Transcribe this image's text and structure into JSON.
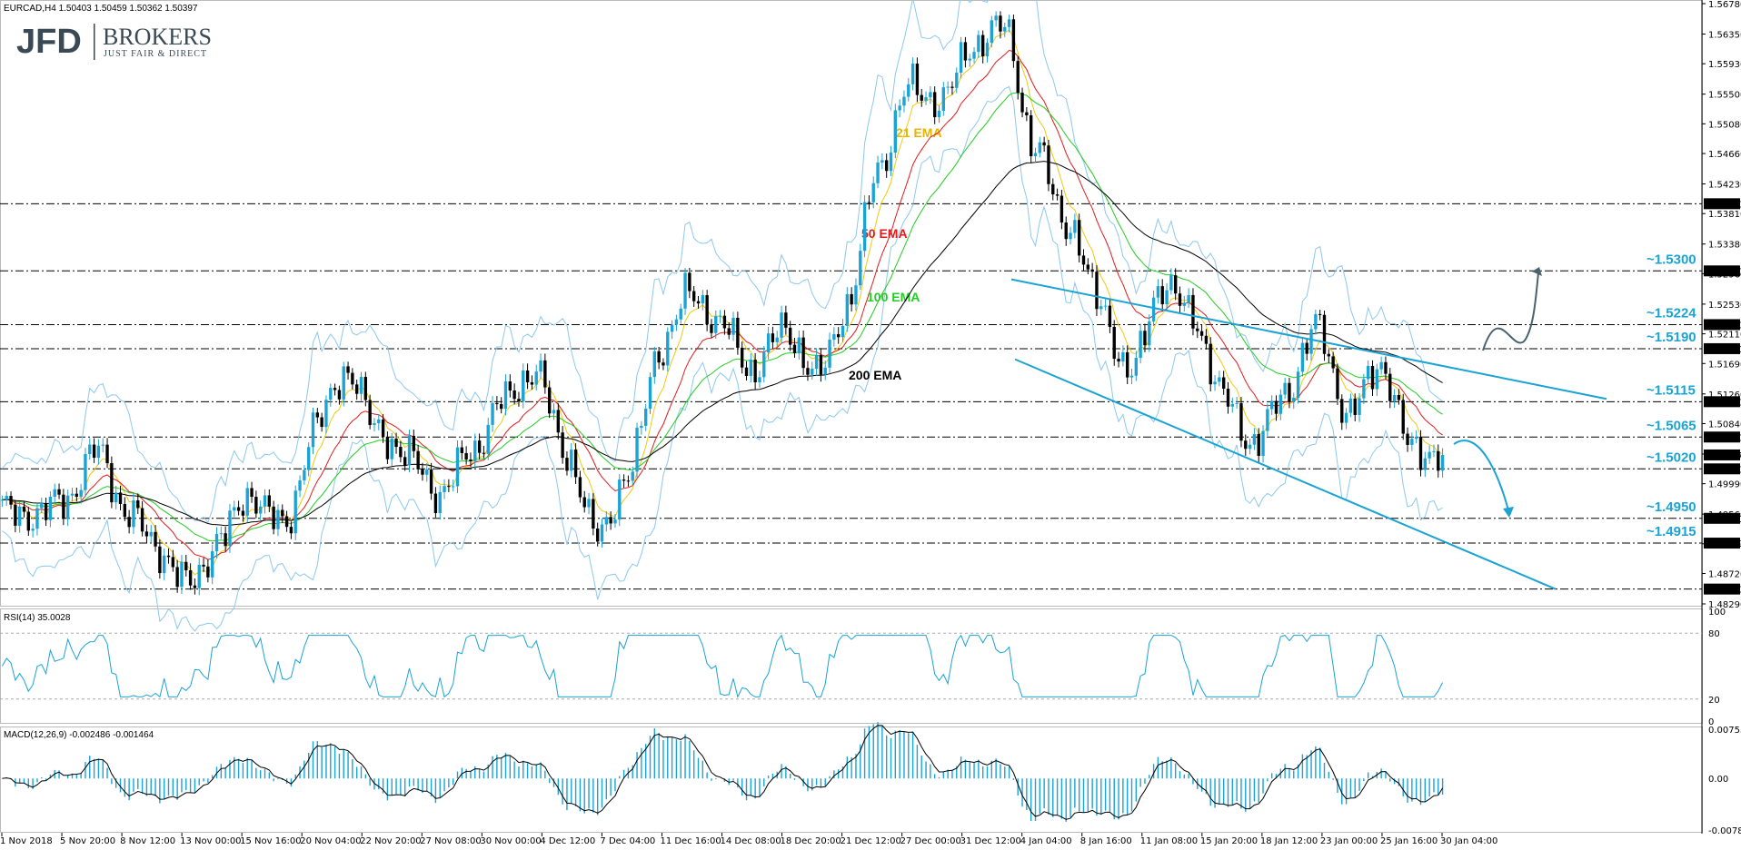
{
  "header": {
    "symbol_info": "EURCAD,H4  1.50403 1.50459 1.50362 1.50397",
    "logo_main": "JFD",
    "logo_brand": "BROKERS",
    "logo_tagline": "JUST FAIR & DIRECT"
  },
  "chart_data": [
    {
      "type": "candlestick",
      "title": "EURCAD,H4",
      "ohlc_last": {
        "open": 1.50403,
        "high": 1.50459,
        "low": 1.50362,
        "close": 1.50397
      },
      "ylim": [
        1.4829,
        1.5678
      ],
      "y_ticks": [
        "1.56780",
        "1.56350",
        "1.55930",
        "1.55500",
        "1.55080",
        "1.54660",
        "1.54230",
        "1.53810",
        "1.53380",
        "1.52960",
        "1.52530",
        "1.52110",
        "1.51690",
        "1.51260",
        "1.50840",
        "1.50410",
        "1.49990",
        "1.49560",
        "1.49140",
        "1.48720",
        "1.48290"
      ],
      "x_ticks": [
        "1 Nov 2018",
        "5 Nov 20:00",
        "8 Nov 12:00",
        "13 Nov 00:00",
        "15 Nov 16:00",
        "20 Nov 04:00",
        "22 Nov 20:00",
        "27 Nov 08:00",
        "30 Nov 00:00",
        "4 Dec 12:00",
        "7 Dec 04:00",
        "11 Dec 16:00",
        "14 Dec 08:00",
        "18 Dec 20:00",
        "21 Dec 12:00",
        "27 Dec 00:00",
        "31 Dec 12:00",
        "4 Jan 04:00",
        "8 Jan 16:00",
        "11 Jan 08:00",
        "15 Jan 20:00",
        "18 Jan 12:00",
        "23 Jan 00:00",
        "25 Jan 16:00",
        "30 Jan 04:00"
      ],
      "price_path_anchors": [
        1.496,
        1.4955,
        1.4975,
        1.5045,
        1.496,
        1.4905,
        1.4855,
        1.4925,
        1.4985,
        1.4935,
        1.508,
        1.516,
        1.5075,
        1.5035,
        1.4985,
        1.5045,
        1.5115,
        1.516,
        1.5045,
        1.4925,
        1.501,
        1.519,
        1.527,
        1.522,
        1.516,
        1.522,
        1.515,
        1.525,
        1.545,
        1.556,
        1.554,
        1.562,
        1.5645,
        1.547,
        1.537,
        1.526,
        1.515,
        1.528,
        1.524,
        1.512,
        1.5055,
        1.513,
        1.522,
        1.5095,
        1.517,
        1.505,
        1.504
      ],
      "ema_labels": [
        {
          "name": "21 EMA",
          "color": "#f2c80f"
        },
        {
          "name": "50 EMA",
          "color": "#e31a1c"
        },
        {
          "name": "100 EMA",
          "color": "#22cc22"
        },
        {
          "name": "200 EMA",
          "color": "#000000"
        }
      ],
      "levels": [
        {
          "value": 1.5395,
          "box": "1.53950",
          "label": ""
        },
        {
          "value": 1.53,
          "box": "1.53000",
          "label": "~1.5300"
        },
        {
          "value": 1.5224,
          "box": "1.52240",
          "label": "~1.5224"
        },
        {
          "value": 1.519,
          "box": "1.51900",
          "label": "~1.5190"
        },
        {
          "value": 1.5115,
          "box": "1.51150",
          "label": "~1.5115"
        },
        {
          "value": 1.5065,
          "box": "1.50650",
          "label": "~1.5065"
        },
        {
          "value": 1.502,
          "box": "1.50200",
          "label": "~1.5020"
        },
        {
          "value": 1.495,
          "box": "1.49500",
          "label": "~1.4950"
        },
        {
          "value": 1.4915,
          "box": "1.49150",
          "label": "~1.4915"
        },
        {
          "value": 1.485,
          "box": "1.48500",
          "label": ""
        }
      ],
      "current_price_box": "1.50397",
      "channel": {
        "upper": [
          [
            1.5288,
            1.5119
          ]
        ],
        "lower": [
          [
            1.5175,
            1.485
          ]
        ]
      }
    },
    {
      "type": "line",
      "title": "RSI(14) 35.0028",
      "ylim": [
        0,
        100
      ],
      "y_ticks": [
        "100",
        "80",
        "20",
        "0"
      ],
      "levels": [
        80,
        20
      ],
      "last_value": 35.0028
    },
    {
      "type": "bar",
      "title": "MACD(12,26,9) -0.002486 -0.001464",
      "ylim": [
        -0.007885,
        0.007531
      ],
      "y_ticks": [
        "0.007531",
        "0.00",
        "-0.007885"
      ],
      "macd_last": -0.002486,
      "signal_last": -0.001464
    }
  ],
  "colors": {
    "candle": "#1aa3d4",
    "bollinger": "#8cc8ee",
    "level_label": "#1aa3d4",
    "trendline": "#1aa3d4",
    "arrow_up": "#4a6270",
    "arrow_down": "#1aa3d4"
  }
}
